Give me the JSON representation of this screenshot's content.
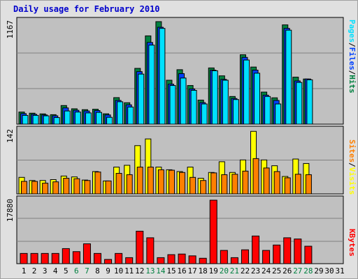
{
  "title": "Daily usage for February 2010",
  "colors": {
    "frame_bg": "#e0e0e0",
    "plot_bg": "#c0c0c0",
    "grid": "#808080",
    "hits": "#008040",
    "files": "#0040ff",
    "pages": "#00e0ff",
    "visits": "#ffff00",
    "sites": "#ff8000",
    "kbytes": "#ff0000",
    "weekday_label": "#000000",
    "weekend_label": "#008040"
  },
  "chart_data": [
    {
      "type": "bar",
      "panel": "hits-files-pages",
      "ymax_label": "1167",
      "ylim": [
        0,
        1167
      ],
      "categories": [
        "1",
        "2",
        "3",
        "4",
        "5",
        "6",
        "7",
        "8",
        "9",
        "10",
        "11",
        "12",
        "13",
        "14",
        "15",
        "16",
        "17",
        "18",
        "19",
        "20",
        "21",
        "22",
        "23",
        "24",
        "25",
        "26",
        "27",
        "28",
        "29",
        "30",
        "31"
      ],
      "legend": [
        "Pages",
        "Files",
        "Hits"
      ],
      "series": [
        {
          "name": "Hits",
          "values": [
            138,
            125,
            117,
            108,
            212,
            175,
            165,
            170,
            118,
            302,
            244,
            635,
            1005,
            1167,
            500,
            620,
            440,
            274,
            640,
            550,
            315,
            790,
            650,
            365,
            300,
            1130,
            535,
            514,
            null,
            null,
            null
          ]
        },
        {
          "name": "Files",
          "values": [
            120,
            112,
            105,
            95,
            185,
            158,
            150,
            155,
            105,
            270,
            220,
            598,
            930,
            1103,
            455,
            575,
            400,
            245,
            615,
            510,
            292,
            760,
            615,
            330,
            270,
            1090,
            492,
            514,
            null,
            null,
            null
          ]
        },
        {
          "name": "Pages",
          "values": [
            100,
            100,
            95,
            75,
            150,
            138,
            128,
            134,
            78,
            255,
            195,
            570,
            900,
            1090,
            440,
            525,
            385,
            230,
            608,
            500,
            280,
            730,
            580,
            315,
            230,
            1070,
            475,
            505,
            null,
            null,
            null
          ]
        }
      ]
    },
    {
      "type": "bar",
      "panel": "visits-sites",
      "ymax_label": "142",
      "ylim": [
        0,
        142
      ],
      "categories": [
        "1",
        "2",
        "3",
        "4",
        "5",
        "6",
        "7",
        "8",
        "9",
        "10",
        "11",
        "12",
        "13",
        "14",
        "15",
        "16",
        "17",
        "18",
        "19",
        "20",
        "21",
        "22",
        "23",
        "24",
        "25",
        "26",
        "27",
        "28",
        "29",
        "30",
        "31"
      ],
      "legend": [
        "Sites",
        "Visits"
      ],
      "series": [
        {
          "name": "Visits",
          "values": [
            37,
            30,
            30,
            32,
            40,
            38,
            31,
            50,
            29,
            60,
            64,
            108,
            123,
            60,
            54,
            50,
            60,
            35,
            48,
            72,
            48,
            76,
            140,
            76,
            63,
            39,
            78,
            68,
            null,
            null,
            null
          ]
        },
        {
          "name": "Sites",
          "values": [
            28,
            28,
            24,
            27,
            35,
            34,
            30,
            49,
            29,
            46,
            43,
            60,
            60,
            54,
            53,
            48,
            37,
            30,
            47,
            43,
            44,
            51,
            79,
            58,
            50,
            36,
            44,
            43,
            null,
            null,
            null
          ]
        }
      ]
    },
    {
      "type": "bar",
      "panel": "kbytes",
      "ymax_label": "17880",
      "ylim": [
        0,
        17880
      ],
      "categories": [
        "1",
        "2",
        "3",
        "4",
        "5",
        "6",
        "7",
        "8",
        "9",
        "10",
        "11",
        "12",
        "13",
        "14",
        "15",
        "16",
        "17",
        "18",
        "19",
        "20",
        "21",
        "22",
        "23",
        "24",
        "25",
        "26",
        "27",
        "28",
        "29",
        "30",
        "31"
      ],
      "legend": [
        "KBytes"
      ],
      "series": [
        {
          "name": "KBytes",
          "values": [
            2880,
            2880,
            2880,
            2880,
            4240,
            3390,
            5590,
            2880,
            1190,
            2880,
            1690,
            9150,
            7290,
            1690,
            2540,
            2710,
            2200,
            1520,
            17880,
            3730,
            1690,
            3900,
            7790,
            3730,
            5250,
            7290,
            6950,
            4910,
            null,
            null,
            null
          ]
        }
      ]
    }
  ],
  "x_axis": {
    "labels": [
      "1",
      "2",
      "3",
      "4",
      "5",
      "6",
      "7",
      "8",
      "9",
      "10",
      "11",
      "12",
      "13",
      "14",
      "15",
      "16",
      "17",
      "18",
      "19",
      "20",
      "21",
      "22",
      "23",
      "24",
      "25",
      "26",
      "27",
      "28",
      "29",
      "30",
      "31"
    ],
    "weekend_days": [
      "6",
      "7",
      "13",
      "14",
      "20",
      "21",
      "27",
      "28"
    ]
  }
}
